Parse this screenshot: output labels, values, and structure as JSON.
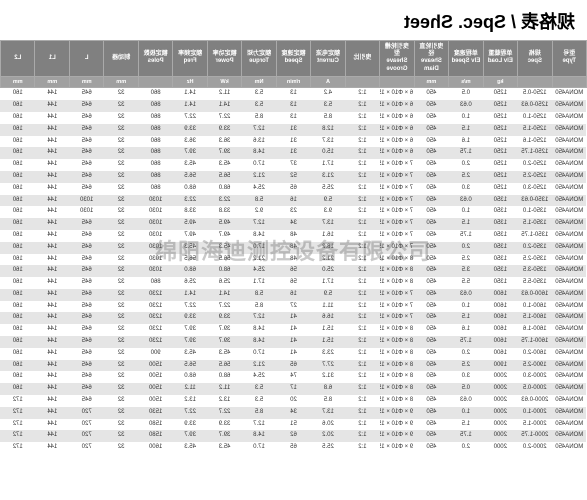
{
  "title": "规格表 / Spec. Sheet",
  "watermark": "绵阳海迪测控设备有限公司",
  "columns": [
    {
      "h": "型号",
      "sub": "Type"
    },
    {
      "h": "规格",
      "sub": "Spec"
    },
    {
      "h": "单程载重",
      "sub": "Elv Load"
    },
    {
      "h": "单程速度",
      "sub": "Elv Speed"
    },
    {
      "h": "曳引轮直径",
      "sub": "Sheave Diam"
    },
    {
      "h": "曳引轮槽型",
      "sub": "Sheave Groove"
    },
    {
      "h": "曳引比",
      "sub": ""
    },
    {
      "h": "额定电流",
      "sub": "Current"
    },
    {
      "h": "额定速度",
      "sub": "Speed"
    },
    {
      "h": "额定力矩",
      "sub": "Torque"
    },
    {
      "h": "额定功率",
      "sub": "Power"
    },
    {
      "h": "额定频率",
      "sub": "Freq"
    },
    {
      "h": "额定极数",
      "sub": "Poles"
    },
    {
      "h": "制动器",
      "sub": ""
    },
    {
      "h": "L",
      "sub": ""
    },
    {
      "h": "L1",
      "sub": ""
    },
    {
      "h": "L2",
      "sub": ""
    }
  ],
  "units": [
    "",
    "",
    "kg",
    "m/s",
    "mm",
    "",
    "",
    "A",
    "r/min",
    "Nm",
    "kW",
    "Hz",
    "",
    "mm",
    "mm",
    "mm",
    "mm"
  ],
  "rows": [
    [
      "MONA450",
      "1250-0.5",
      "1250",
      "0.5",
      "450",
      "6 × Φ10 × 15",
      "1:2",
      "4.2",
      "13",
      "5.3",
      "11.2",
      "14.1",
      "860",
      "32",
      "645",
      "144",
      "160"
    ],
    [
      "MONA450",
      "1250-0.63",
      "1250",
      "0.63",
      "450",
      "6 × Φ10 × 15",
      "1:2",
      "5.3",
      "13",
      "5.3",
      "14.1",
      "14.1",
      "860",
      "32",
      "645",
      "144",
      "160"
    ],
    [
      "MONA450",
      "1250-1.0",
      "1250",
      "1.0",
      "450",
      "6 × Φ10 × 15",
      "1:2",
      "8.5",
      "13",
      "8.5",
      "22.7",
      "22.7",
      "860",
      "32",
      "645",
      "144",
      "160"
    ],
    [
      "MONA450",
      "1250-1.5",
      "1250",
      "1.5",
      "450",
      "6 × Φ10 × 15",
      "1:2",
      "12.8",
      "31",
      "12.7",
      "33.9",
      "33.9",
      "860",
      "32",
      "645",
      "144",
      "160"
    ],
    [
      "MONA450",
      "1250-1.6",
      "1250",
      "1.6",
      "450",
      "6 × Φ10 × 15",
      "1:2",
      "13.7",
      "31",
      "13.6",
      "36.3",
      "36.3",
      "860",
      "32",
      "645",
      "144",
      "160"
    ],
    [
      "MONA450",
      "1250-1.75",
      "1250",
      "1.75",
      "450",
      "6 × Φ10 × 15",
      "1:2",
      "15.0",
      "31",
      "14.8",
      "39.7",
      "39.7",
      "860",
      "32",
      "645",
      "144",
      "160"
    ],
    [
      "MONA450",
      "1250-2.0",
      "1250",
      "2.0",
      "450",
      "7 × Φ10 × 15",
      "1:2",
      "17.1",
      "37",
      "17.0",
      "45.3",
      "45.3",
      "860",
      "32",
      "645",
      "144",
      "160"
    ],
    [
      "MONA450",
      "1250-2.5",
      "1250",
      "2.5",
      "450",
      "7 × Φ10 × 15",
      "1:2",
      "21.3",
      "52",
      "21.2",
      "56.5",
      "56.5",
      "860",
      "32",
      "645",
      "144",
      "160"
    ],
    [
      "MONA450",
      "1250-3.0",
      "1250",
      "3.0",
      "450",
      "7 × Φ10 × 15",
      "1:2",
      "25.5",
      "65",
      "25.4",
      "68.0",
      "68.0",
      "860",
      "32",
      "645",
      "144",
      "160"
    ],
    [
      "MONA450",
      "1350-0.63",
      "1350",
      "0.63",
      "450",
      "7 × Φ10 × 15",
      "1:2",
      "5.9",
      "16",
      "5.8",
      "22.3",
      "22.3",
      "1030",
      "32",
      "1030",
      "144",
      "160"
    ],
    [
      "MONA450",
      "1350-1.0",
      "1350",
      "1.0",
      "450",
      "7 × Φ10 × 15",
      "1:2",
      "9.3",
      "23",
      "9.2",
      "33.8",
      "33.8",
      "1030",
      "32",
      "1030",
      "144",
      "160"
    ],
    [
      "MONA450",
      "1350-1.5",
      "1350",
      "1.5",
      "450",
      "7 × Φ10 × 15",
      "1:2",
      "13.7",
      "34",
      "12.7",
      "49.5",
      "49.5",
      "1030",
      "32",
      "645",
      "144",
      "160"
    ],
    [
      "MONA450",
      "1350-1.75",
      "1350",
      "1.75",
      "450",
      "7 × Φ10 × 15",
      "1:2",
      "16.1",
      "48",
      "14.8",
      "49.7",
      "49.7",
      "1030",
      "32",
      "645",
      "144",
      "160"
    ],
    [
      "MONA450",
      "1350-2.0",
      "1350",
      "2.0",
      "450",
      "7 × Φ10 × 15",
      "1:2",
      "18.2",
      "48",
      "17.0",
      "45.3",
      "45.3",
      "1030",
      "32",
      "645",
      "144",
      "160"
    ],
    [
      "MONA450",
      "1350-2.5",
      "1350",
      "2.5",
      "450",
      "8 × Φ10 × 15",
      "1:2",
      "21.2",
      "48",
      "21.2",
      "56.5",
      "56.5",
      "1030",
      "32",
      "645",
      "144",
      "160"
    ],
    [
      "MONA450",
      "1350-3.5",
      "1350",
      "3.5",
      "450",
      "8 × Φ10 × 15",
      "1:2",
      "25.0",
      "56",
      "25.4",
      "68.0",
      "68.0",
      "1030",
      "32",
      "645",
      "144",
      "160"
    ],
    [
      "MONA450",
      "1350-5.5",
      "1350",
      "5.5",
      "450",
      "8 × Φ10 × 15",
      "1:2",
      "17.1",
      "56",
      "17.1",
      "25.6",
      "25.6",
      "860",
      "32",
      "645",
      "144",
      "160"
    ],
    [
      "MONA450",
      "1600-0.63",
      "1600",
      "0.63",
      "450",
      "7 × Φ10 × 15",
      "1:2",
      "5.9",
      "16",
      "5.8",
      "14.1",
      "14.1",
      "1230",
      "32",
      "645",
      "144",
      "160"
    ],
    [
      "MONA450",
      "1600-1.0",
      "1600",
      "1.0",
      "450",
      "7 × Φ10 × 15",
      "1:2",
      "11.1",
      "27",
      "8.5",
      "22.7",
      "22.7",
      "1230",
      "32",
      "645",
      "144",
      "160"
    ],
    [
      "MONA450",
      "1600-1.5",
      "1600",
      "1.5",
      "450",
      "7 × Φ10 × 15",
      "1:2",
      "16.6",
      "41",
      "12.7",
      "33.9",
      "33.9",
      "1230",
      "32",
      "645",
      "144",
      "160"
    ],
    [
      "MONA450",
      "1600-1.6",
      "1600",
      "1.6",
      "450",
      "8 × Φ10 × 15",
      "1:2",
      "15.1",
      "41",
      "14.8",
      "39.7",
      "39.7",
      "1230",
      "32",
      "645",
      "144",
      "160"
    ],
    [
      "MONA450",
      "1600-1.75",
      "1600",
      "1.75",
      "450",
      "8 × Φ10 × 15",
      "1:2",
      "15.1",
      "41",
      "14.8",
      "39.7",
      "39.7",
      "1230",
      "32",
      "645",
      "144",
      "160"
    ],
    [
      "MONA450",
      "1600-2.0",
      "1600",
      "2.0",
      "450",
      "8 × Φ10 × 15",
      "1:2",
      "23.3",
      "41",
      "17.0",
      "45.3",
      "45.3",
      "900",
      "32",
      "645",
      "144",
      "160"
    ],
    [
      "MONA450",
      "1900-2.5",
      "1900",
      "2.5",
      "450",
      "8 × Φ10 × 15",
      "1:2",
      "27.7",
      "65",
      "21.2",
      "56.5",
      "56.5",
      "1500",
      "32",
      "645",
      "144",
      "160"
    ],
    [
      "MONA450",
      "2000-3.0",
      "2000",
      "3.0",
      "450",
      "8 × Φ10 × 15",
      "1:2",
      "31.2",
      "74",
      "25.4",
      "68.0",
      "68.0",
      "1500",
      "32",
      "645",
      "144",
      "160"
    ],
    [
      "MONA450",
      "2000-0.5",
      "2000",
      "0.5",
      "450",
      "8 × Φ10 × 15",
      "1:2",
      "6.8",
      "17",
      "5.3",
      "11.2",
      "11.2",
      "1500",
      "32",
      "645",
      "144",
      "160"
    ],
    [
      "MONA450",
      "2000-0.63",
      "2000",
      "0.63",
      "450",
      "8 × Φ10 × 15",
      "1:2",
      "8.5",
      "20",
      "5.3",
      "13.2",
      "13.2",
      "1500",
      "32",
      "645",
      "144",
      "172"
    ],
    [
      "MONA450",
      "2000-1.0",
      "2000",
      "1.0",
      "450",
      "9 × Φ10 × 15",
      "1:2",
      "13.7",
      "34",
      "8.5",
      "22.7",
      "22.7",
      "1530",
      "32",
      "720",
      "144",
      "172"
    ],
    [
      "MONA450",
      "2000-1.5",
      "2000",
      "1.5",
      "450",
      "9 × Φ10 × 15",
      "1:2",
      "20.6",
      "51",
      "12.7",
      "33.9",
      "33.9",
      "1580",
      "32",
      "720",
      "144",
      "172"
    ],
    [
      "MONA450",
      "2000-1.75",
      "2000",
      "1.75",
      "450",
      "9 × Φ10 × 15",
      "1:2",
      "20.2",
      "62",
      "14.8",
      "39.7",
      "39.7",
      "1580",
      "32",
      "720",
      "144",
      "172"
    ],
    [
      "MONA450",
      "2000-2.0",
      "2000",
      "2.0",
      "450",
      "9 × Φ10 × 15",
      "1:2",
      "25.5",
      "65",
      "17.0",
      "45.3",
      "45.3",
      "1600",
      "32",
      "720",
      "144",
      "172"
    ]
  ]
}
